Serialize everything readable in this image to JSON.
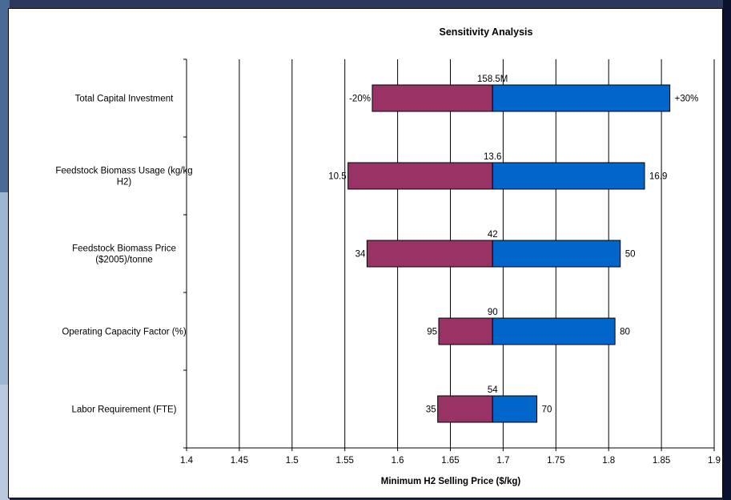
{
  "chart_data": {
    "type": "bar",
    "subtype": "tornado",
    "title": "Sensitivity Analysis",
    "xlabel": "Minimum H2 Selling Price ($/kg)",
    "ylabel": "",
    "xlim": [
      1.4,
      1.9
    ],
    "xticks": [
      1.4,
      1.45,
      1.5,
      1.55,
      1.6,
      1.65,
      1.7,
      1.75,
      1.8,
      1.85,
      1.9
    ],
    "xtick_labels": [
      "1.4",
      "1.45",
      "1.5",
      "1.55",
      "1.6",
      "1.65",
      "1.7",
      "1.75",
      "1.8",
      "1.85",
      "1.9"
    ],
    "base": 1.69,
    "grid": "vertical",
    "colors": {
      "low": "#993366",
      "high": "#0066cc"
    },
    "categories": [
      {
        "label_lines": [
          "Total Capital Investment"
        ],
        "low": 1.576,
        "high": 1.858,
        "low_label": "-20%",
        "high_label": "+30%",
        "base_label": "158.5M"
      },
      {
        "label_lines": [
          "Feedstock Biomass Usage (kg/kg",
          "H2)"
        ],
        "low": 1.553,
        "high": 1.834,
        "low_label": "10.5",
        "high_label": "16.9",
        "base_label": "13.6"
      },
      {
        "label_lines": [
          "Feedstock Biomass Price",
          "($2005)/tonne"
        ],
        "low": 1.571,
        "high": 1.811,
        "low_label": "34",
        "high_label": "50",
        "base_label": "42"
      },
      {
        "label_lines": [
          "Operating Capacity Factor (%)"
        ],
        "low": 1.639,
        "high": 1.806,
        "low_label": "95",
        "high_label": "80",
        "base_label": "90"
      },
      {
        "label_lines": [
          "Labor Requirement (FTE)"
        ],
        "low": 1.638,
        "high": 1.732,
        "low_label": "35",
        "high_label": "70",
        "base_label": "54"
      }
    ]
  }
}
